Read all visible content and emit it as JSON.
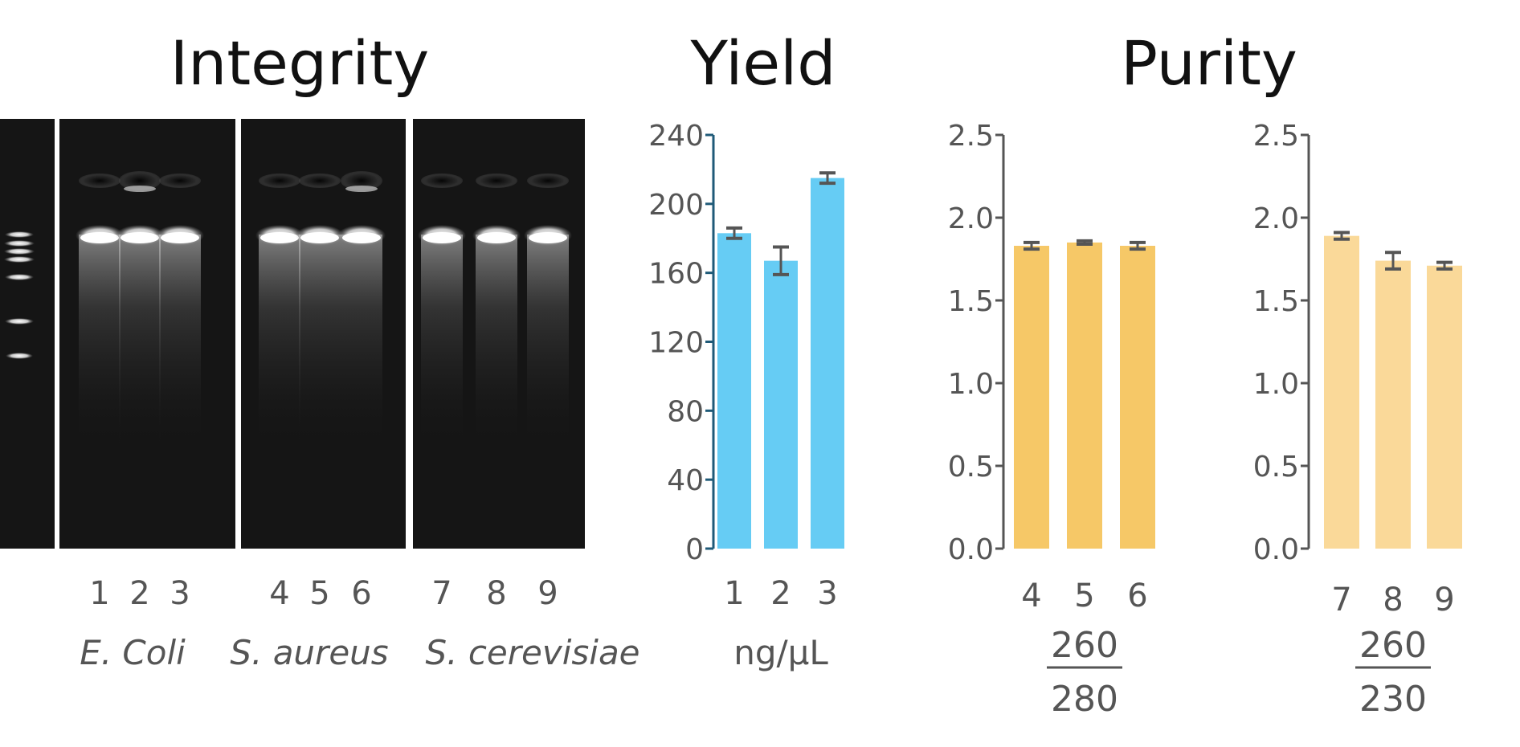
{
  "titles": {
    "integrity": "Integrity",
    "yield": "Yield",
    "purity": "Purity"
  },
  "gel": {
    "panels": [
      {
        "species": "E. Coli",
        "lanes": [
          "1",
          "2",
          "3"
        ]
      },
      {
        "species": "S. aureus",
        "lanes": [
          "4",
          "5",
          "6"
        ]
      },
      {
        "species": "S. cerevisiae",
        "lanes": [
          "7",
          "8",
          "9"
        ]
      }
    ]
  },
  "chart_data": [
    {
      "type": "bar",
      "categories": [
        "1",
        "2",
        "3"
      ],
      "values": [
        183,
        167,
        215
      ],
      "errors": [
        3,
        8,
        3
      ],
      "xlabel": "ng/μL",
      "ylim": [
        0,
        240
      ],
      "yticks": [
        0,
        40,
        80,
        120,
        160,
        200,
        240
      ],
      "color": "#66ccf4",
      "axis_color": "#1f5a78"
    },
    {
      "type": "bar",
      "categories": [
        "4",
        "5",
        "6"
      ],
      "values": [
        1.83,
        1.85,
        1.83
      ],
      "errors": [
        0.02,
        0.01,
        0.02
      ],
      "xlabel_numerator": "260",
      "xlabel_denominator": "280",
      "ylim": [
        0,
        2.5
      ],
      "yticks": [
        "0.0",
        "0.5",
        "1.0",
        "1.5",
        "2.0",
        "2.5"
      ],
      "color": "#f6c867",
      "axis_color": "#555555"
    },
    {
      "type": "bar",
      "categories": [
        "7",
        "8",
        "9"
      ],
      "values": [
        1.89,
        1.74,
        1.71
      ],
      "errors": [
        0.02,
        0.05,
        0.02
      ],
      "xlabel_numerator": "260",
      "xlabel_denominator": "230",
      "ylim": [
        0,
        2.5
      ],
      "yticks": [
        "0.0",
        "0.5",
        "1.0",
        "1.5",
        "2.0",
        "2.5"
      ],
      "color": "#fad999",
      "axis_color": "#555555"
    }
  ]
}
